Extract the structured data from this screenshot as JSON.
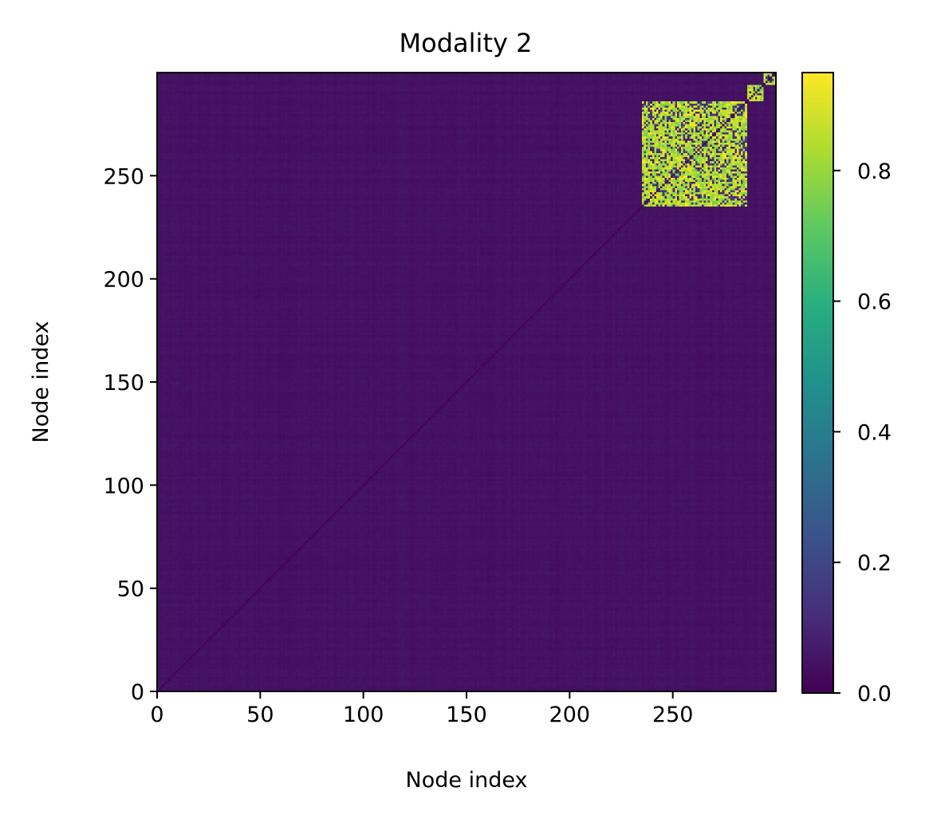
{
  "chart_data": {
    "type": "heatmap",
    "title": "Modality 2",
    "xlabel": "Node index",
    "ylabel": "Node index",
    "n_nodes": 300,
    "xlim": [
      0,
      300
    ],
    "ylim": [
      0,
      300
    ],
    "x_ticks": [
      0,
      50,
      100,
      150,
      200,
      250
    ],
    "y_ticks": [
      0,
      50,
      100,
      150,
      200,
      250
    ],
    "x_tick_labels": [
      "0",
      "50",
      "100",
      "150",
      "200",
      "250"
    ],
    "y_tick_labels": [
      "0",
      "50",
      "100",
      "150",
      "200",
      "250"
    ],
    "colorbar": {
      "colormap": "viridis",
      "vmin": 0.0,
      "vmax": 0.95,
      "ticks": [
        0.0,
        0.2,
        0.4,
        0.6,
        0.8
      ],
      "tick_labels": [
        "0.0",
        "0.2",
        "0.4",
        "0.6",
        "0.8"
      ]
    },
    "background_value": 0.05,
    "diagonal_value": 0.0,
    "blocks": [
      {
        "start": 235,
        "end": 285,
        "high_value": 0.85
      },
      {
        "start": 286,
        "end": 293,
        "high_value": 0.85
      },
      {
        "start": 294,
        "end": 299,
        "high_value": 0.85
      }
    ],
    "grid": false,
    "legend": "none"
  }
}
